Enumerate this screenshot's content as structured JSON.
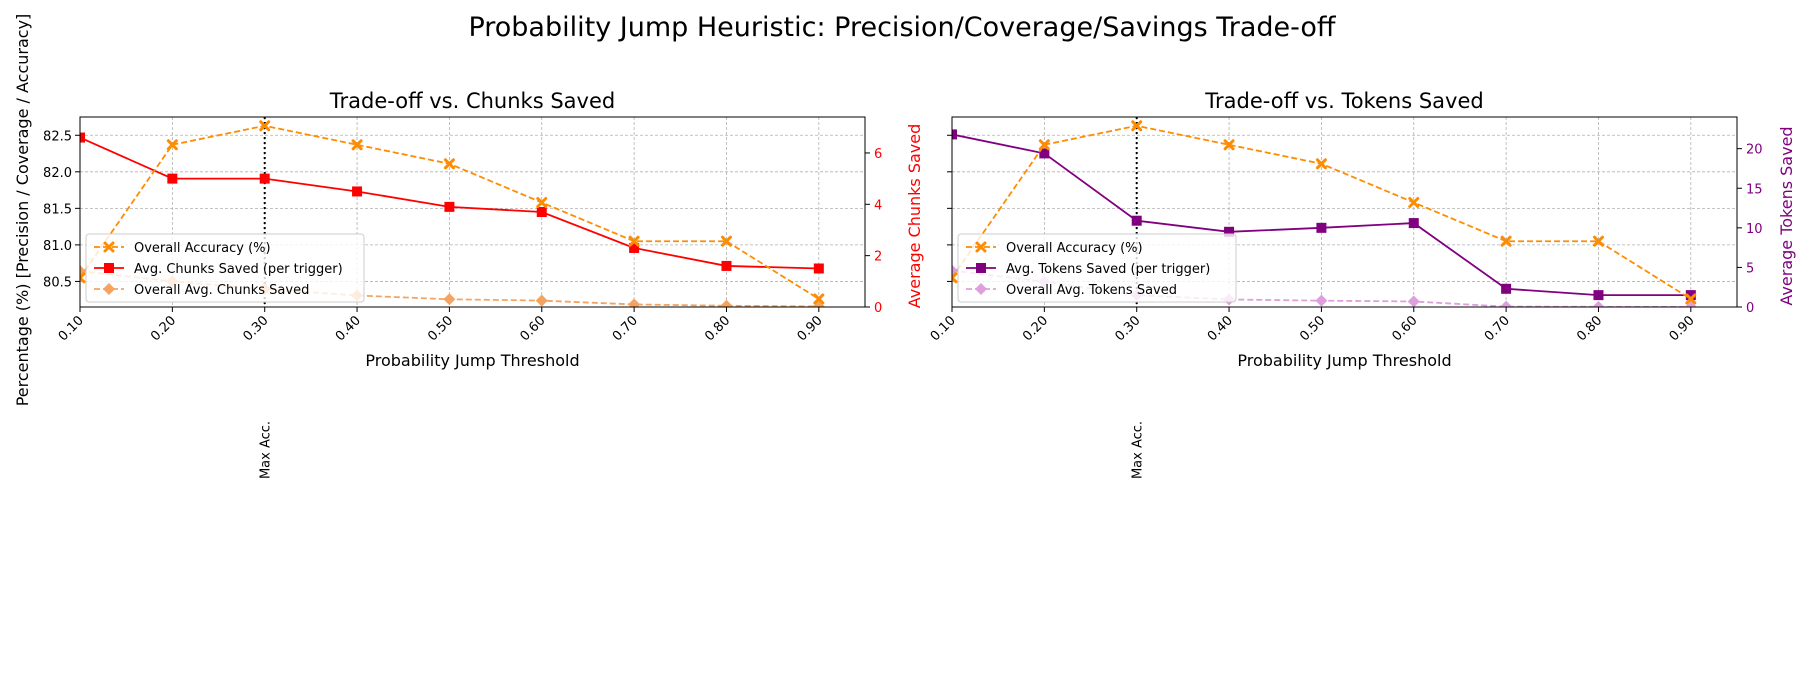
{
  "figure_title": "Probability Jump Heuristic: Precision/Coverage/Savings Trade-off",
  "shared_ylabel": "Percentage (%) [Precision / Coverage / Accuracy]",
  "colors": {
    "accuracy": "#ff8c00",
    "chunks_saved": "#ff0000",
    "overall_chunks": "#f4a460",
    "tokens_saved": "#800080",
    "overall_tokens": "#dda0dd",
    "grid": "#b0b0b0"
  },
  "chart_data": [
    {
      "type": "line",
      "title": "Trade-off vs. Chunks Saved",
      "xlabel": "Probability Jump Threshold",
      "y2label": "Average Chunks Saved",
      "x": [
        0.1,
        0.2,
        0.3,
        0.4,
        0.5,
        0.6,
        0.7,
        0.8,
        0.9
      ],
      "x_tick_labels": [
        "0.10",
        "0.20",
        "0.30",
        "0.40",
        "0.50",
        "0.60",
        "0.70",
        "0.80",
        "0.90"
      ],
      "xlim": [
        0.1,
        0.95
      ],
      "ylim": [
        80.15,
        82.75
      ],
      "yticks": [
        80.5,
        81.0,
        81.5,
        82.0,
        82.5
      ],
      "ytick_labels": [
        "80.5",
        "81.0",
        "81.5",
        "82.0",
        "82.5"
      ],
      "y2lim": [
        0,
        7.4
      ],
      "y2ticks": [
        0,
        2,
        4,
        6
      ],
      "y2tick_labels": [
        "0",
        "2",
        "4",
        "6"
      ],
      "annotation": {
        "x": 0.3,
        "label": "Max Acc."
      },
      "legend_position": "lower-left",
      "grid": true,
      "series": [
        {
          "name": "Overall Accuracy (%)",
          "axis": "left",
          "style": "dashed",
          "marker": "x",
          "color": "#ff8c00",
          "values": [
            80.55,
            82.37,
            82.63,
            82.37,
            82.11,
            81.58,
            81.05,
            81.05,
            80.26
          ]
        },
        {
          "name": "Avg. Chunks Saved (per trigger)",
          "axis": "right",
          "style": "solid",
          "marker": "square",
          "color": "#ff0000",
          "values": [
            6.6,
            5.0,
            5.0,
            4.5,
            3.9,
            3.7,
            2.3,
            1.6,
            1.5
          ]
        },
        {
          "name": "Overall Avg. Chunks Saved",
          "axis": "right",
          "style": "dashed",
          "marker": "diamond",
          "color": "#f4a460",
          "values": [
            1.4,
            1.0,
            0.7,
            0.45,
            0.3,
            0.25,
            0.1,
            0.05,
            0.02
          ]
        }
      ]
    },
    {
      "type": "line",
      "title": "Trade-off vs. Tokens Saved",
      "xlabel": "Probability Jump Threshold",
      "y2label": "Average Tokens Saved",
      "x": [
        0.1,
        0.2,
        0.3,
        0.4,
        0.5,
        0.6,
        0.7,
        0.8,
        0.9
      ],
      "x_tick_labels": [
        "0.10",
        "0.20",
        "0.30",
        "0.40",
        "0.50",
        "0.60",
        "0.70",
        "0.80",
        "0.90"
      ],
      "xlim": [
        0.1,
        0.95
      ],
      "ylim": [
        80.15,
        82.75
      ],
      "y2lim": [
        0,
        24
      ],
      "y2ticks": [
        0,
        5,
        10,
        15,
        20
      ],
      "y2tick_labels": [
        "0",
        "5",
        "10",
        "15",
        "20"
      ],
      "annotation": {
        "x": 0.3,
        "label": "Max Acc."
      },
      "legend_position": "lower-left",
      "grid": true,
      "series": [
        {
          "name": "Overall Accuracy (%)",
          "axis": "left",
          "style": "dashed",
          "marker": "x",
          "color": "#ff8c00",
          "values": [
            80.55,
            82.37,
            82.63,
            82.37,
            82.11,
            81.58,
            81.05,
            81.05,
            80.26
          ]
        },
        {
          "name": "Avg. Tokens Saved (per trigger)",
          "axis": "right",
          "style": "solid",
          "marker": "square",
          "color": "#800080",
          "values": [
            21.8,
            19.4,
            10.9,
            9.5,
            10.0,
            10.6,
            2.3,
            1.5,
            1.5
          ]
        },
        {
          "name": "Overall Avg. Tokens Saved",
          "axis": "right",
          "style": "dashed",
          "marker": "diamond",
          "color": "#dda0dd",
          "values": [
            4.6,
            3.2,
            1.5,
            0.95,
            0.8,
            0.7,
            0.05,
            0.02,
            0.01
          ]
        }
      ]
    }
  ]
}
